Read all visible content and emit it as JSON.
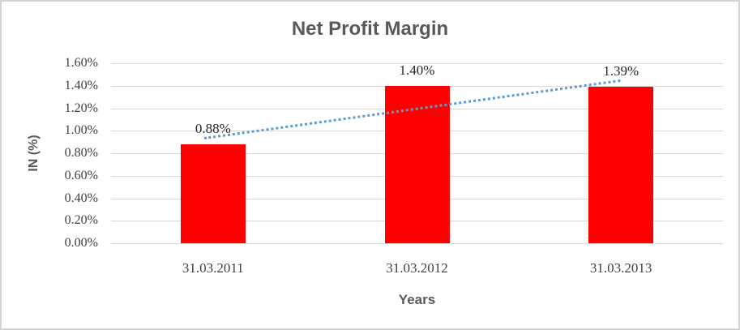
{
  "chart_data": {
    "type": "bar",
    "title": "Net Profit Margin",
    "xlabel": "Years",
    "ylabel": "IN (%)",
    "categories": [
      "31.03.2011",
      "31.03.2012",
      "31.03.2013"
    ],
    "values": [
      0.88,
      1.4,
      1.39
    ],
    "data_labels": [
      "0.88%",
      "1.40%",
      "1.39%"
    ],
    "unit": "percent",
    "ylim": [
      0,
      1.6
    ],
    "ytick_step": 0.2,
    "ytick_labels": [
      "0.00%",
      "0.20%",
      "0.40%",
      "0.60%",
      "0.80%",
      "1.00%",
      "1.20%",
      "1.40%",
      "1.60%"
    ],
    "grid": true,
    "legend": false,
    "trendline": {
      "style": "dotted",
      "shape": "linear-rising",
      "color": "#5b9bd5"
    },
    "colors": {
      "bar": "#ff0000",
      "trendline": "#5b9bd5",
      "gridline": "#d9d9d9",
      "chart_border": "#d3d3d3",
      "title_text": "#595959",
      "tick_text": "#404040",
      "data_label_text": "#262626"
    }
  }
}
